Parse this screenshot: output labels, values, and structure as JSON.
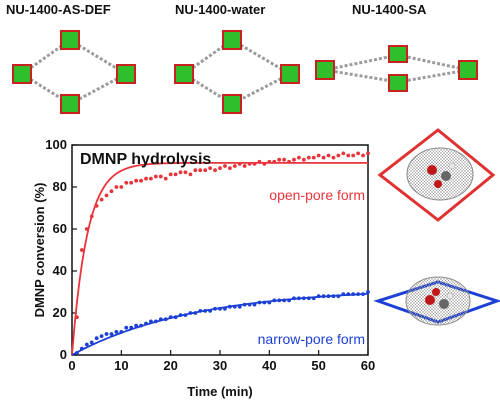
{
  "structures": {
    "labels": [
      "NU-1400-AS-DEF",
      "NU-1400-water",
      "NU-1400-SA"
    ]
  },
  "chart_data": {
    "type": "scatter",
    "title": "DMNP hydrolysis",
    "xlabel": "Time (min)",
    "ylabel": "DMNP conversion (%)",
    "xlim": [
      0,
      60
    ],
    "ylim": [
      0,
      100
    ],
    "xticks": [
      0,
      10,
      20,
      30,
      40,
      50,
      60
    ],
    "yticks": [
      0,
      20,
      40,
      60,
      80,
      100
    ],
    "grid": false,
    "series": [
      {
        "name": "open-pore form",
        "color": "#e8343a",
        "points": [
          [
            1,
            18
          ],
          [
            2,
            50
          ],
          [
            3,
            60
          ],
          [
            4,
            66
          ],
          [
            5,
            71
          ],
          [
            6,
            74
          ],
          [
            7,
            76
          ],
          [
            8,
            78
          ],
          [
            9,
            80
          ],
          [
            10,
            80
          ],
          [
            11,
            82
          ],
          [
            12,
            82
          ],
          [
            13,
            83
          ],
          [
            14,
            83
          ],
          [
            15,
            84
          ],
          [
            16,
            84
          ],
          [
            17,
            85
          ],
          [
            18,
            85
          ],
          [
            19,
            84
          ],
          [
            20,
            86
          ],
          [
            21,
            86
          ],
          [
            22,
            87
          ],
          [
            23,
            87
          ],
          [
            24,
            86
          ],
          [
            25,
            88
          ],
          [
            26,
            88
          ],
          [
            27,
            88
          ],
          [
            28,
            89
          ],
          [
            29,
            88
          ],
          [
            30,
            89
          ],
          [
            31,
            90
          ],
          [
            32,
            89
          ],
          [
            33,
            90
          ],
          [
            34,
            91
          ],
          [
            35,
            90
          ],
          [
            36,
            91
          ],
          [
            37,
            91
          ],
          [
            38,
            92
          ],
          [
            39,
            91
          ],
          [
            40,
            92
          ],
          [
            41,
            92
          ],
          [
            42,
            93
          ],
          [
            43,
            93
          ],
          [
            44,
            92
          ],
          [
            45,
            93
          ],
          [
            46,
            94
          ],
          [
            47,
            93
          ],
          [
            48,
            94
          ],
          [
            49,
            94
          ],
          [
            50,
            95
          ],
          [
            51,
            94
          ],
          [
            52,
            95
          ],
          [
            53,
            94
          ],
          [
            54,
            95
          ],
          [
            55,
            96
          ],
          [
            56,
            95
          ],
          [
            57,
            95
          ],
          [
            58,
            96
          ],
          [
            59,
            95
          ],
          [
            60,
            96
          ]
        ],
        "fit_max": 91.5,
        "fit_k": 0.32
      },
      {
        "name": "narrow-pore form",
        "color": "#1c3fd6",
        "points": [
          [
            1,
            1
          ],
          [
            2,
            3
          ],
          [
            3,
            5
          ],
          [
            4,
            6
          ],
          [
            5,
            8
          ],
          [
            6,
            9
          ],
          [
            7,
            10
          ],
          [
            8,
            10
          ],
          [
            9,
            11
          ],
          [
            10,
            11
          ],
          [
            11,
            13
          ],
          [
            12,
            13
          ],
          [
            13,
            14
          ],
          [
            14,
            14
          ],
          [
            15,
            15
          ],
          [
            16,
            16
          ],
          [
            17,
            16
          ],
          [
            18,
            17
          ],
          [
            19,
            17
          ],
          [
            20,
            18
          ],
          [
            21,
            18
          ],
          [
            22,
            19
          ],
          [
            23,
            19
          ],
          [
            24,
            20
          ],
          [
            25,
            20
          ],
          [
            26,
            21
          ],
          [
            27,
            21
          ],
          [
            28,
            21
          ],
          [
            29,
            22
          ],
          [
            30,
            22
          ],
          [
            31,
            22
          ],
          [
            32,
            23
          ],
          [
            33,
            23
          ],
          [
            34,
            23
          ],
          [
            35,
            24
          ],
          [
            36,
            24
          ],
          [
            37,
            24
          ],
          [
            38,
            25
          ],
          [
            39,
            25
          ],
          [
            40,
            25
          ],
          [
            41,
            26
          ],
          [
            42,
            26
          ],
          [
            43,
            26
          ],
          [
            44,
            26
          ],
          [
            45,
            27
          ],
          [
            46,
            27
          ],
          [
            47,
            27
          ],
          [
            48,
            27
          ],
          [
            49,
            27
          ],
          [
            50,
            28
          ],
          [
            51,
            28
          ],
          [
            52,
            28
          ],
          [
            53,
            28
          ],
          [
            54,
            28
          ],
          [
            55,
            29
          ],
          [
            56,
            29
          ],
          [
            57,
            29
          ],
          [
            58,
            29
          ],
          [
            59,
            29
          ],
          [
            60,
            30
          ]
        ],
        "fit_max": 32,
        "fit_k": 0.04
      }
    ]
  }
}
